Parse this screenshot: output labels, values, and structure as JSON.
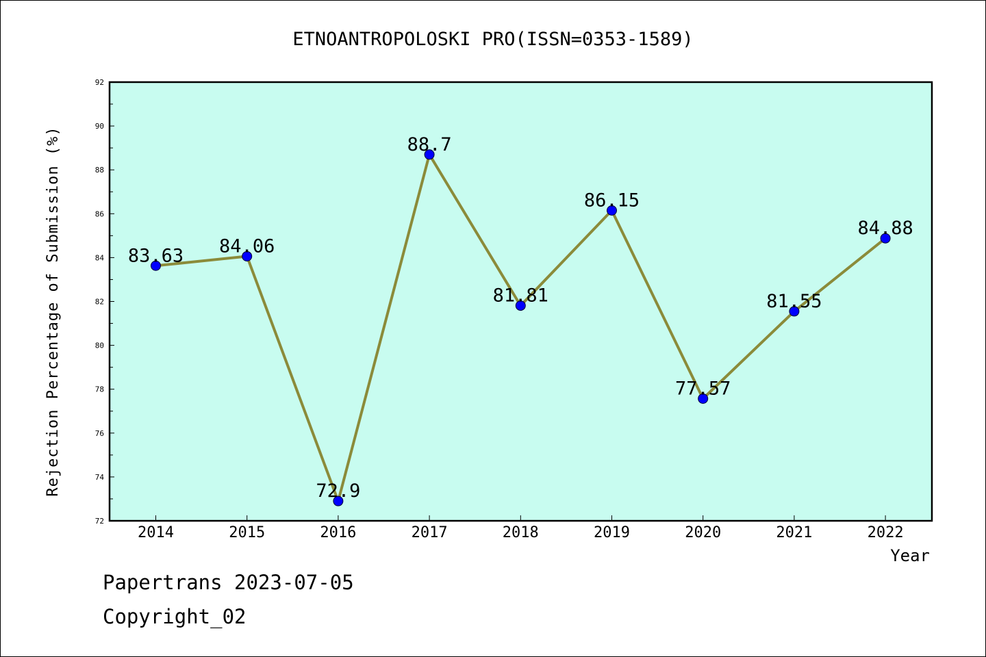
{
  "chart_data": {
    "type": "line",
    "title": "ETNOANTROPOLOSKI PRO(ISSN=0353-1589)",
    "xlabel": "Year",
    "ylabel": "Rejection Percentage of Submission (%)",
    "categories": [
      "2014",
      "2015",
      "2016",
      "2017",
      "2018",
      "2019",
      "2020",
      "2021",
      "2022"
    ],
    "series": [
      {
        "values": [
          83.63,
          84.06,
          72.9,
          88.7,
          81.81,
          86.15,
          77.57,
          81.55,
          84.88
        ],
        "data_labels": [
          "83.63",
          "84.06",
          "72.9",
          "88.7",
          "81.81",
          "86.15",
          "77.57",
          "81.55",
          "84.88"
        ],
        "line_color": "#8b8b3a",
        "marker_color": "#0000ff"
      }
    ],
    "ylim": [
      72,
      92
    ],
    "yticks": [
      "72",
      "74",
      "76",
      "78",
      "80",
      "82",
      "84",
      "86",
      "88",
      "90",
      "92"
    ],
    "plot_background": "#c8fcf0",
    "grid": false,
    "legend": "none"
  },
  "footer": {
    "line1": "Papertrans 2023-07-05",
    "line2": "Copyright_02"
  }
}
